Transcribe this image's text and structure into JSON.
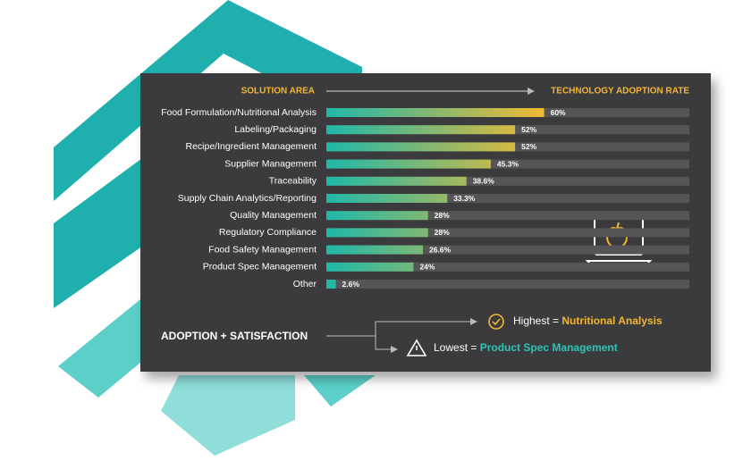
{
  "chart_data": {
    "type": "bar",
    "orientation": "horizontal",
    "category_header": "SOLUTION AREA",
    "value_header": "TECHNOLOGY ADOPTION RATE",
    "categories": [
      "Food Formulation/Nutritional Analysis",
      "Labeling/Packaging",
      "Recipe/Ingredient Management",
      "Supplier Management",
      "Traceability",
      "Supply Chain Analytics/Reporting",
      "Quality Management",
      "Regulatory Compliance",
      "Food Safety Management",
      "Product Spec Management",
      "Other"
    ],
    "values": [
      60,
      52,
      52,
      45.3,
      38.6,
      33.3,
      28,
      28,
      26.6,
      24,
      2.6
    ],
    "value_labels": [
      "60%",
      "52%",
      "52%",
      "45.3%",
      "38.6%",
      "33.3%",
      "28%",
      "28%",
      "26.6%",
      "24%",
      "2.6%"
    ],
    "xlim": [
      0,
      100
    ],
    "color_start": "#1fb8aa",
    "color_end": "#f2b933",
    "track_color": "#555557",
    "summary": {
      "title": "ADOPTION + SATISFACTION",
      "highest_label": "Highest =",
      "highest_value": "Nutritional Analysis",
      "lowest_label": "Lowest =",
      "lowest_value": "Product Spec Management"
    }
  }
}
